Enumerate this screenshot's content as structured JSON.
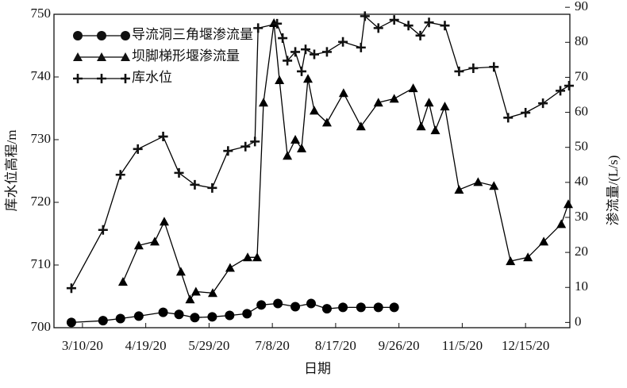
{
  "chart_data": {
    "type": "line",
    "xlabel": "日期",
    "ylabel": "库水位高程/m",
    "y2label": "渗流量/(L/s)",
    "xlim": [
      52,
      378
    ],
    "xticks": [
      {
        "value": 70,
        "label": "3/10/20"
      },
      {
        "value": 110,
        "label": "4/19/20"
      },
      {
        "value": 150,
        "label": "5/29/20"
      },
      {
        "value": 190,
        "label": "7/8/20"
      },
      {
        "value": 230,
        "label": "8/17/20"
      },
      {
        "value": 270,
        "label": "9/26/20"
      },
      {
        "value": 310,
        "label": "11/5/20"
      },
      {
        "value": 350,
        "label": "12/15/20"
      }
    ],
    "ylim": [
      700,
      750
    ],
    "yticks": [
      700,
      710,
      720,
      730,
      740,
      750
    ],
    "y2lim": [
      -1.5,
      88
    ],
    "y2ticks": [
      0,
      10,
      20,
      30,
      40,
      50,
      60,
      70,
      80,
      90
    ],
    "legend": "upper left",
    "series": [
      {
        "name": "导流洞三角堰渗流量",
        "color": "#000000",
        "marker": "circle",
        "axis": "y2",
        "x": [
          63,
          83,
          94,
          105.6,
          121,
          131,
          141,
          152,
          163,
          174,
          183,
          193.5,
          204.5,
          214.5,
          224.5,
          234.6,
          246,
          257,
          267
        ],
        "values": [
          0,
          0.5,
          1.1,
          1.8,
          2.9,
          2.3,
          1.4,
          1.6,
          2.0,
          2.5,
          5.0,
          5.4,
          4.5,
          5.4,
          3.9,
          4.3,
          4.3,
          4.3,
          4.3
        ]
      },
      {
        "name": "坝脚梯形堰渗流量",
        "color": "#000000",
        "marker": "triangle",
        "axis": "y2",
        "x": [
          95.6,
          105.6,
          115.7,
          121.7,
          132.2,
          138,
          141.7,
          152.3,
          163.3,
          174.4,
          180.4,
          184.4,
          191,
          194.5,
          199.5,
          204.5,
          208.5,
          212.5,
          216.5,
          224.5,
          235,
          246,
          257,
          267,
          279,
          284,
          289,
          293,
          299,
          308,
          320,
          330,
          340.5,
          351.5,
          361.5,
          372.6,
          377
        ],
        "values": [
          11.6,
          22,
          23.1,
          28.8,
          14.5,
          6.6,
          8.8,
          8.4,
          15.6,
          18.6,
          18.6,
          62.8,
          85.5,
          69.2,
          47.6,
          52.2,
          49.7,
          69.6,
          60.5,
          57.1,
          65.5,
          56,
          62.8,
          63.9,
          66.9,
          56,
          62.8,
          54.9,
          61.7,
          37.9,
          40.1,
          39,
          17.5,
          18.6,
          23.1,
          28.1,
          33.8
        ]
      },
      {
        "name": "库水位",
        "color": "#000000",
        "marker": "plus",
        "x": [
          63,
          83,
          94,
          105,
          121,
          131,
          141,
          152,
          162,
          173,
          179,
          181,
          193,
          196.5,
          199.5,
          204.5,
          208.5,
          211,
          216.5,
          224.5,
          234.6,
          246,
          248.5,
          257,
          267,
          276,
          283.5,
          289,
          299,
          308,
          317,
          330,
          339,
          350,
          361,
          372,
          377.5
        ],
        "values": [
          706.3,
          715.6,
          724.4,
          728.5,
          730.5,
          724.7,
          722.8,
          722.3,
          728.2,
          728.9,
          729.7,
          747.8,
          748.5,
          746.2,
          742.6,
          744.0,
          740.9,
          744.4,
          743.6,
          744.0,
          745.6,
          744.7,
          749.7,
          747.8,
          749.1,
          748.2,
          746.6,
          748.7,
          748.2,
          740.9,
          741.4,
          741.6,
          733.5,
          734.3,
          735.8,
          737.8,
          738.6
        ]
      }
    ]
  }
}
